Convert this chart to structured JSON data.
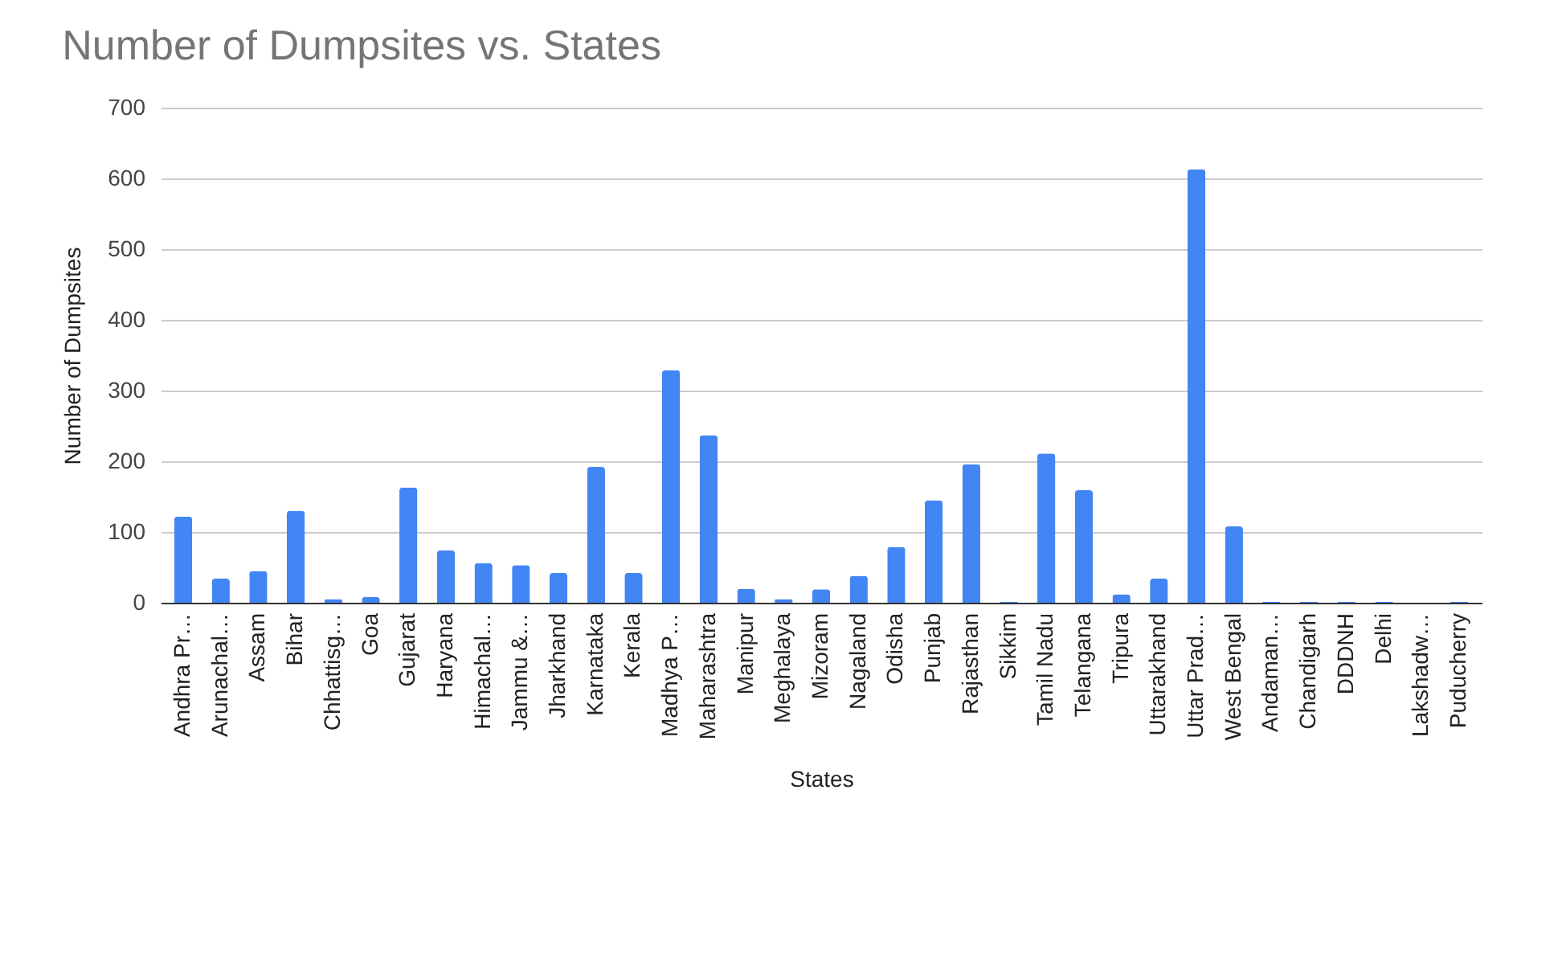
{
  "chart_data": {
    "type": "bar",
    "title": "Number of Dumpsites vs. States",
    "xlabel": "States",
    "ylabel": "Number of Dumpsites",
    "categories": [
      "Andhra Pr…",
      "Arunachal…",
      "Assam",
      "Bihar",
      "Chhattisg…",
      "Goa",
      "Gujarat",
      "Haryana",
      "Himachal…",
      "Jammu &…",
      "Jharkhand",
      "Karnataka",
      "Kerala",
      "Madhya P…",
      "Maharashtra",
      "Manipur",
      "Meghalaya",
      "Mizoram",
      "Nagaland",
      "Odisha",
      "Punjab",
      "Rajasthan",
      "Sikkim",
      "Tamil Nadu",
      "Telangana",
      "Tripura",
      "Uttarakhand",
      "Uttar Prad…",
      "West Bengal",
      "Andaman…",
      "Chandigarh",
      "DDDNH",
      "Delhi",
      "Lakshadw…",
      "Puducherry"
    ],
    "values": [
      122,
      34,
      45,
      130,
      5,
      8,
      163,
      74,
      56,
      53,
      42,
      192,
      42,
      329,
      237,
      20,
      5,
      19,
      38,
      79,
      145,
      196,
      1,
      211,
      159,
      12,
      34,
      613,
      108,
      1,
      1,
      1,
      1,
      0,
      1
    ],
    "color": "#4285f4",
    "ylim": [
      0,
      700
    ],
    "yticks": [
      0,
      100,
      200,
      300,
      400,
      500,
      600,
      700
    ],
    "grid": "y"
  }
}
